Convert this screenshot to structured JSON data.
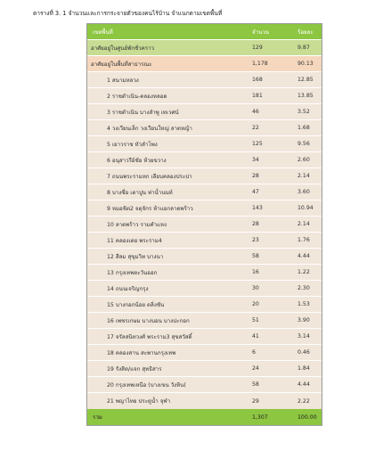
{
  "caption": "ตารางที่ 3. 1 จำนวนและการกระจายตัวของคนไร้บ้าน จำแนกตามเขตพื้นที่",
  "header": {
    "area": "เขตพื้นที่",
    "count": "จำนวน",
    "percent": "ร้อยละ"
  },
  "group_shelter": {
    "label": "อาศัยอยู่ในศูนย์พักชั่วคราว",
    "count": "129",
    "percent": "9.87"
  },
  "group_public": {
    "label": "อาศัยอยู่ในพื้นที่สาธารณะ",
    "count": "1,178",
    "percent": "90.13"
  },
  "rows": [
    {
      "label": "1 สนามหลวง",
      "count": "168",
      "percent": "12.85"
    },
    {
      "label": "2 ราชดำเนิน-คลองหลอด",
      "count": "181",
      "percent": "13.85"
    },
    {
      "label": "3 ราชดำเนิน บางลำพู เทเวศน์",
      "count": "46",
      "percent": "3.52"
    },
    {
      "label": "4 วงเวียนเล็ก วงเวียนใหญ่ ลาดหญ้า",
      "count": "22",
      "percent": "1.68"
    },
    {
      "label": "5 เยาวราช หัวลำโพง",
      "count": "125",
      "percent": "9.56"
    },
    {
      "label": "6 อนุสาวรีย์ชัย ห้วยขวาง",
      "count": "34",
      "percent": "2.60"
    },
    {
      "label": "7 ถนนพระรามหก เลียบคลองประปา",
      "count": "28",
      "percent": "2.14"
    },
    {
      "label": "8 บางซื่อ เตาปูน ท่าน้ำนนท์",
      "count": "47",
      "percent": "3.60"
    },
    {
      "label": "9 หมอชิต2 จตุจักร ห้าแยกลาดพร้าว",
      "count": "143",
      "percent": "10.94"
    },
    {
      "label": "10 ลาดพร้าว รามคำแหง",
      "count": "28",
      "percent": "2.14"
    },
    {
      "label": "11 คลองเตย พระราม4",
      "count": "23",
      "percent": "1.76"
    },
    {
      "label": "12 สีลม สุขุมวิท บางนา",
      "count": "58",
      "percent": "4.44"
    },
    {
      "label": "13 กรุงเทพตะวันออก",
      "count": "16",
      "percent": "1.22"
    },
    {
      "label": "14 ถนนเจริญกรุง",
      "count": "30",
      "percent": "2.30"
    },
    {
      "label": "15 บางกอกน้อย ตลิ่งชัน",
      "count": "20",
      "percent": "1.53"
    },
    {
      "label": "16 เพชรเกษม บางบอน บางปะกอก",
      "count": "51",
      "percent": "3.90"
    },
    {
      "label": "17 จรัลสนิทวงศ์ พระราม3 สุขสวัสดิ์",
      "count": "41",
      "percent": "3.14"
    },
    {
      "label": "18 คลองสาน สะพานกรุงเทพ",
      "count": "6",
      "percent": "0.46"
    },
    {
      "label": "19 รังสิต/แจก สุทธิสาร",
      "count": "24",
      "percent": "1.84"
    },
    {
      "label": "20 กรุงเทพเหนือ (บางเขน วังหิน(",
      "count": "58",
      "percent": "4.44"
    },
    {
      "label": "21 พญาไทย ประตูน้ำ จุฬา",
      "count": "29",
      "percent": "2.22"
    }
  ],
  "total": {
    "label": "รวม",
    "count": "1,307",
    "percent": "100.00"
  }
}
